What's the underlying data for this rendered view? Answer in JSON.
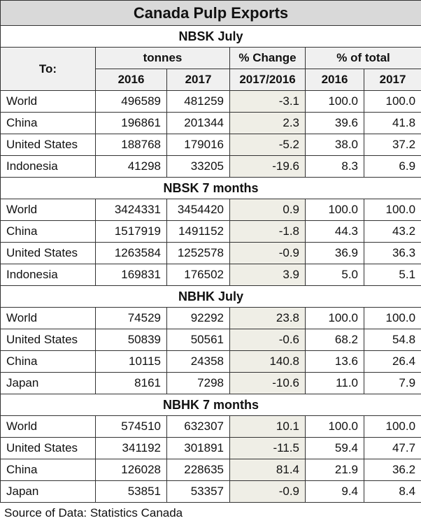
{
  "title": "Canada Pulp Exports",
  "header": {
    "to": "To:",
    "tonnes": "tonnes",
    "change": "% Change",
    "share": "% of total",
    "subheads": [
      "2016",
      "2017",
      "2017/2016",
      "2016",
      "2017"
    ]
  },
  "sections": [
    {
      "title": "NBSK July",
      "rows": [
        [
          "World",
          "496589",
          "481259",
          "-3.1",
          "100.0",
          "100.0"
        ],
        [
          "China",
          "196861",
          "201344",
          "2.3",
          "39.6",
          "41.8"
        ],
        [
          "United States",
          "188768",
          "179016",
          "-5.2",
          "38.0",
          "37.2"
        ],
        [
          "Indonesia",
          "41298",
          "33205",
          "-19.6",
          "8.3",
          "6.9"
        ]
      ]
    },
    {
      "title": "NBSK 7 months",
      "rows": [
        [
          "World",
          "3424331",
          "3454420",
          "0.9",
          "100.0",
          "100.0"
        ],
        [
          "China",
          "1517919",
          "1491152",
          "-1.8",
          "44.3",
          "43.2"
        ],
        [
          "United States",
          "1263584",
          "1252578",
          "-0.9",
          "36.9",
          "36.3"
        ],
        [
          "Indonesia",
          "169831",
          "176502",
          "3.9",
          "5.0",
          "5.1"
        ]
      ]
    },
    {
      "title": "NBHK July",
      "rows": [
        [
          "World",
          "74529",
          "92292",
          "23.8",
          "100.0",
          "100.0"
        ],
        [
          "United States",
          "50839",
          "50561",
          "-0.6",
          "68.2",
          "54.8"
        ],
        [
          "China",
          "10115",
          "24358",
          "140.8",
          "13.6",
          "26.4"
        ],
        [
          "Japan",
          "8161",
          "7298",
          "-10.6",
          "11.0",
          "7.9"
        ]
      ]
    },
    {
      "title": "NBHK 7 months",
      "rows": [
        [
          "World",
          "574510",
          "632307",
          "10.1",
          "100.0",
          "100.0"
        ],
        [
          "United States",
          "341192",
          "301891",
          "-11.5",
          "59.4",
          "47.7"
        ],
        [
          "China",
          "126028",
          "228635",
          "81.4",
          "21.9",
          "36.2"
        ],
        [
          "Japan",
          "53851",
          "53357",
          "-0.9",
          "9.4",
          "8.4"
        ]
      ]
    }
  ],
  "source": "Source of Data: Statistics Canada"
}
